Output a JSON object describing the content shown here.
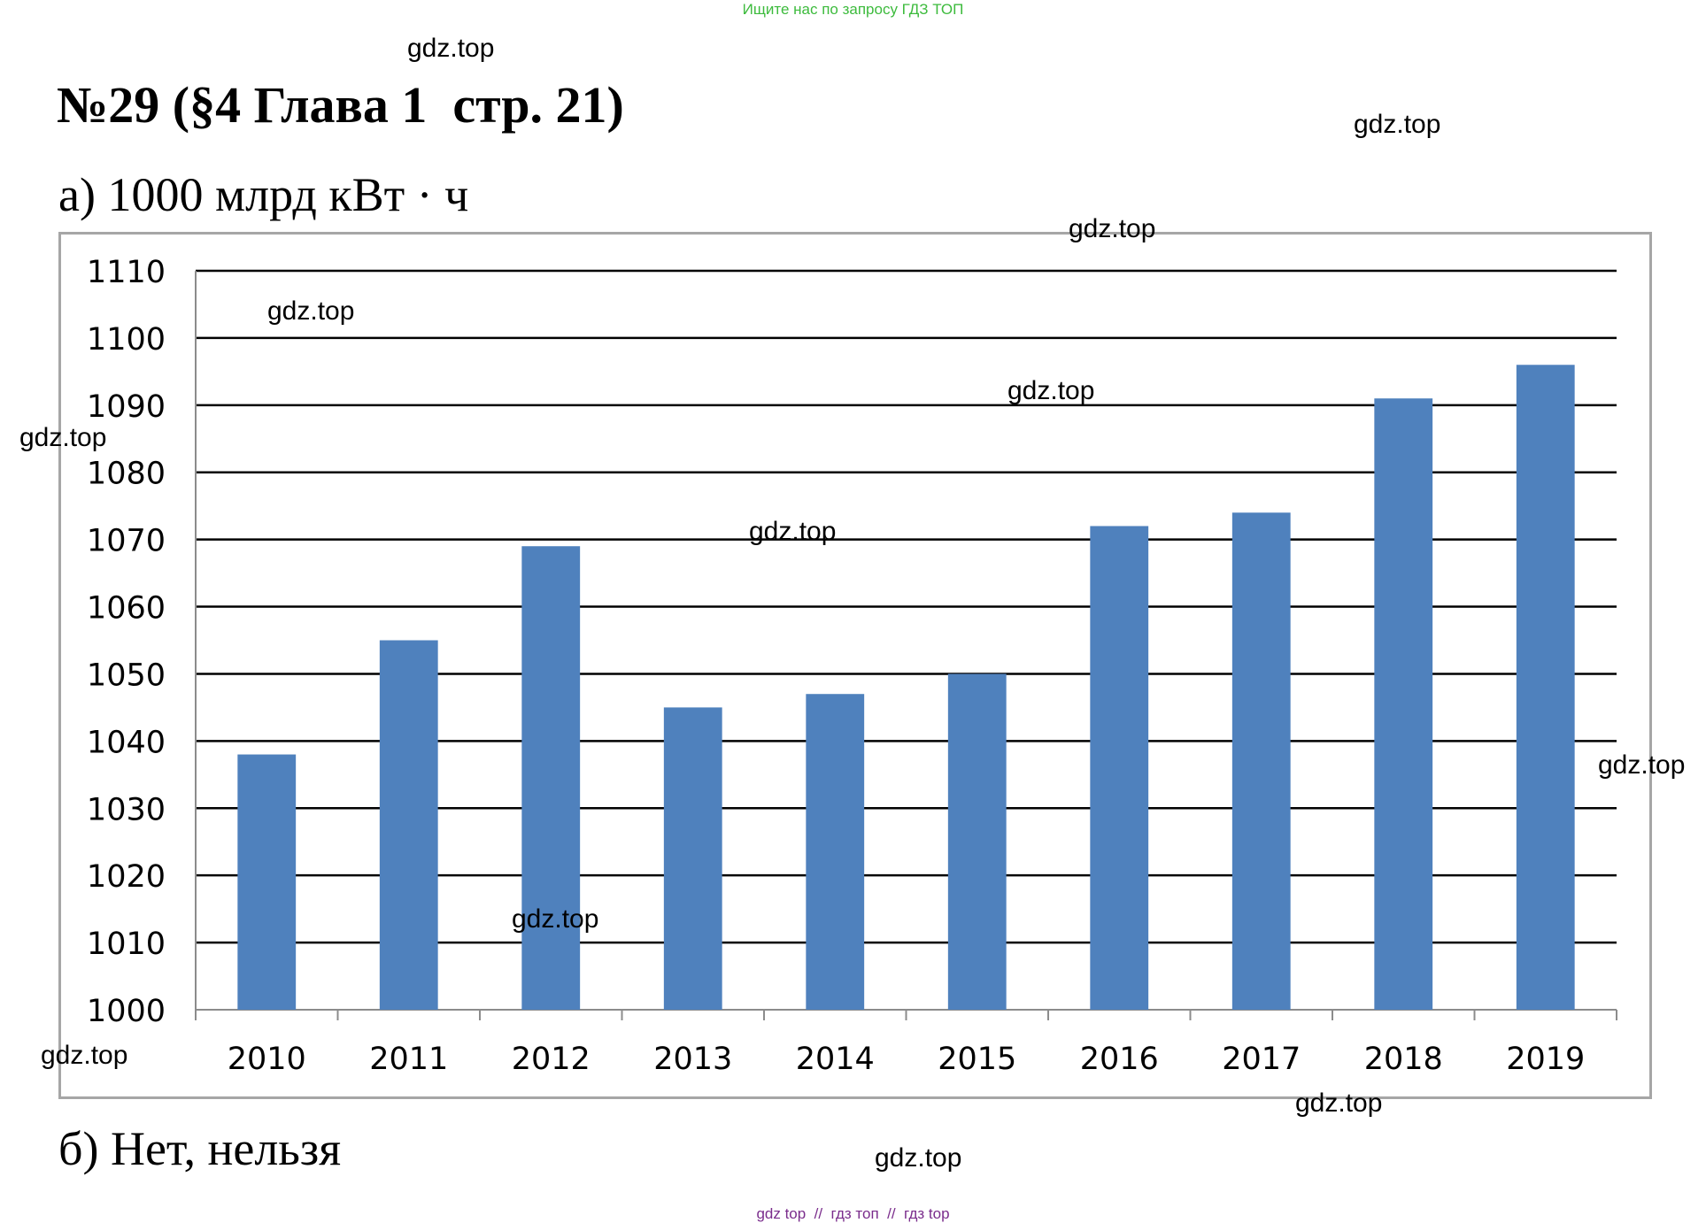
{
  "banner": {
    "text": "Ищите нас по запросу ГДЗ ТОП",
    "color": "#3dbb3d"
  },
  "title": "№29 (§4 Глава 1  стр. 21)",
  "answer_a": "а) 1000 млрд кВт · ч",
  "answer_b": "б) Нет, нельзя",
  "watermarks": [
    "gdz.top",
    "gdz.top",
    "gdz.top",
    "gdz.top",
    "gdz.top",
    "gdz.top",
    "gdz.top",
    "gdz.top",
    "gdz.top",
    "gdz.top",
    "gdz.top",
    "gdz.top"
  ],
  "bottom_links": {
    "text": "gdz top  //  гдз топ  //  гдз top",
    "color": "#7a2d8c"
  },
  "chart_data": {
    "type": "bar",
    "categories": [
      "2010",
      "2011",
      "2012",
      "2013",
      "2014",
      "2015",
      "2016",
      "2017",
      "2018",
      "2019"
    ],
    "values": [
      1038,
      1055,
      1069,
      1045,
      1047,
      1050,
      1072,
      1074,
      1091,
      1096
    ],
    "yticks": [
      "1000",
      "1010",
      "1020",
      "1030",
      "1040",
      "1050",
      "1060",
      "1070",
      "1080",
      "1090",
      "1100",
      "1110"
    ],
    "ylim": [
      1000,
      1110
    ],
    "grid": true,
    "legend": "none",
    "bar_color": "#4f81bd",
    "grid_color": "#000000"
  }
}
